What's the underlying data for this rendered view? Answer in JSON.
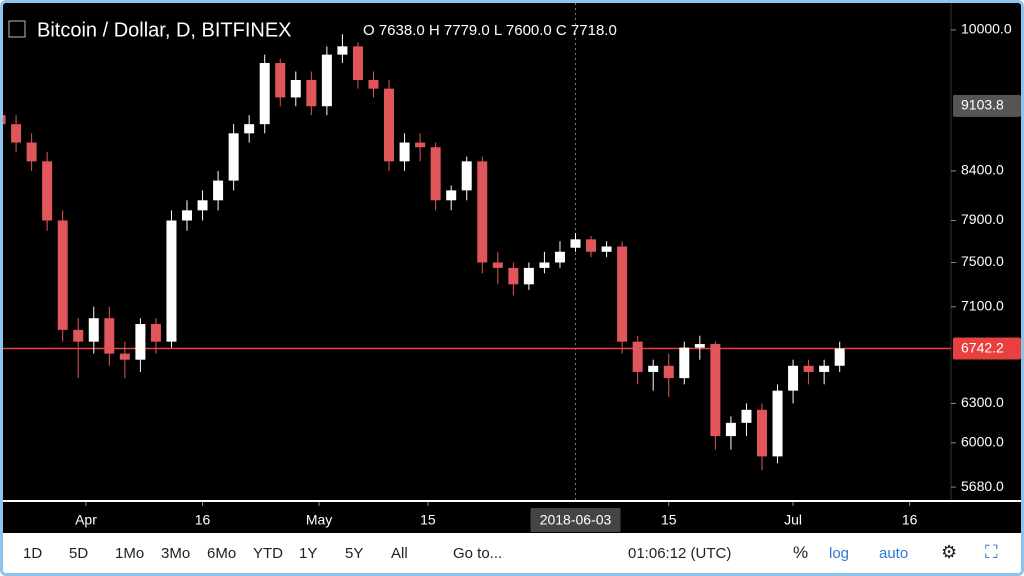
{
  "chart_data": {
    "type": "candlestick",
    "title": "Bitcoin / Dollar, D, BITFINEX",
    "ohlc_legend": "O 7638.0 H 7779.0 L 7600.0 C 7718.0",
    "log": true,
    "up_color": "#ffffff",
    "down_color": "#e0565b",
    "x": [
      "2018-03-21",
      "2018-03-23",
      "2018-03-25",
      "2018-03-27",
      "2018-03-29",
      "2018-03-31",
      "2018-04-02",
      "2018-04-04",
      "2018-04-06",
      "2018-04-08",
      "2018-04-10",
      "2018-04-12",
      "2018-04-14",
      "2018-04-16",
      "2018-04-18",
      "2018-04-20",
      "2018-04-22",
      "2018-04-24",
      "2018-04-26",
      "2018-04-28",
      "2018-04-30",
      "2018-05-02",
      "2018-05-04",
      "2018-05-06",
      "2018-05-08",
      "2018-05-10",
      "2018-05-12",
      "2018-05-14",
      "2018-05-16",
      "2018-05-18",
      "2018-05-20",
      "2018-05-22",
      "2018-05-24",
      "2018-05-26",
      "2018-05-28",
      "2018-05-30",
      "2018-06-01",
      "2018-06-03",
      "2018-06-05",
      "2018-06-07",
      "2018-06-09",
      "2018-06-11",
      "2018-06-13",
      "2018-06-15",
      "2018-06-17",
      "2018-06-19",
      "2018-06-21",
      "2018-06-23",
      "2018-06-25",
      "2018-06-27",
      "2018-06-29",
      "2018-07-01",
      "2018-07-03",
      "2018-07-05",
      "2018-07-07"
    ],
    "open": [
      9000,
      8900,
      8700,
      8500,
      7900,
      6900,
      6800,
      7000,
      6700,
      6650,
      6950,
      6800,
      7900,
      8000,
      8100,
      8300,
      8800,
      8900,
      9600,
      9200,
      9400,
      9100,
      9700,
      9800,
      9400,
      9300,
      8500,
      8700,
      8650,
      8100,
      8200,
      8500,
      7500,
      7450,
      7300,
      7450,
      7500,
      7638,
      7718,
      7600,
      7650,
      6800,
      6550,
      6600,
      6500,
      6750,
      6780,
      6050,
      6150,
      6250,
      5900,
      6400,
      6600,
      6550,
      6600
    ],
    "high": [
      9100,
      9000,
      8800,
      8600,
      8000,
      7000,
      7100,
      7100,
      6800,
      7000,
      7000,
      8000,
      8100,
      8200,
      8400,
      8900,
      9000,
      9700,
      9650,
      9500,
      9500,
      9800,
      9950,
      9850,
      9500,
      9400,
      8800,
      8800,
      8700,
      8250,
      8550,
      8550,
      7600,
      7500,
      7500,
      7600,
      7700,
      7779,
      7750,
      7700,
      7700,
      6850,
      6650,
      6700,
      6800,
      6850,
      6800,
      6200,
      6300,
      6300,
      6450,
      6650,
      6650,
      6650,
      6800
    ],
    "low": [
      8800,
      8600,
      8400,
      7800,
      6800,
      6500,
      6700,
      6600,
      6500,
      6550,
      6700,
      6750,
      7800,
      7900,
      8000,
      8200,
      8700,
      8800,
      9100,
      9100,
      9000,
      9000,
      9600,
      9300,
      9200,
      8400,
      8400,
      8500,
      8000,
      8000,
      8100,
      7400,
      7300,
      7200,
      7250,
      7400,
      7450,
      7600,
      7550,
      7550,
      6700,
      6450,
      6400,
      6350,
      6450,
      6650,
      5950,
      5950,
      6050,
      5800,
      5850,
      6300,
      6450,
      6450,
      6550
    ],
    "close": [
      8900,
      8700,
      8500,
      7900,
      6900,
      6800,
      7000,
      6700,
      6650,
      6950,
      6800,
      7900,
      8000,
      8100,
      8300,
      8800,
      8900,
      9600,
      9200,
      9400,
      9100,
      9700,
      9800,
      9400,
      9300,
      8500,
      8700,
      8650,
      8100,
      8200,
      8500,
      7500,
      7450,
      7300,
      7450,
      7500,
      7600,
      7718,
      7600,
      7650,
      6800,
      6550,
      6600,
      6500,
      6750,
      6780,
      6050,
      6150,
      6250,
      5900,
      6400,
      6600,
      6550,
      6600,
      6742.2
    ],
    "ylim": [
      5590,
      10340
    ],
    "yticks": [
      {
        "value": 10000,
        "label": "10000.0"
      },
      {
        "value": 8400,
        "label": "8400.0"
      },
      {
        "value": 7900,
        "label": "7900.0"
      },
      {
        "value": 7500,
        "label": "7500.0"
      },
      {
        "value": 7100,
        "label": "7100.0"
      },
      {
        "value": 6300,
        "label": "6300.0"
      },
      {
        "value": 6000,
        "label": "6000.0"
      },
      {
        "value": 5680,
        "label": "5680.0"
      }
    ],
    "xticks": [
      {
        "value": "2018-04-01",
        "label": "Apr"
      },
      {
        "value": "2018-04-16",
        "label": "16"
      },
      {
        "value": "2018-05-01",
        "label": "May"
      },
      {
        "value": "2018-05-15",
        "label": "15"
      },
      {
        "value": "2018-06-15",
        "label": "15"
      },
      {
        "value": "2018-07-01",
        "label": "Jul"
      },
      {
        "value": "2018-07-16",
        "label": "16"
      }
    ],
    "crosshair": "2018-06-03",
    "price_line": 6742.2,
    "marker_price": 9103.8,
    "toolbar": {
      "ranges": [
        "1D",
        "5D",
        "1Mo",
        "3Mo",
        "6Mo",
        "YTD",
        "1Y",
        "5Y",
        "All"
      ],
      "goto": "Go to...",
      "time": "01:06:12 (UTC)",
      "percent": "%",
      "log": "log",
      "auto": "auto"
    }
  }
}
